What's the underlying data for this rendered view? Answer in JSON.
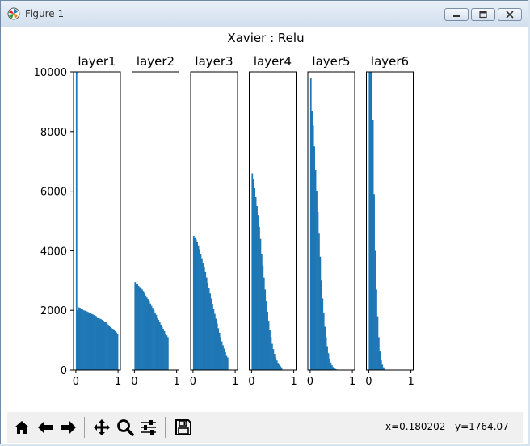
{
  "window": {
    "title": "Figure 1",
    "icon": "matplotlib-icon",
    "controls": [
      "minimize-icon",
      "maximize-icon",
      "close-icon"
    ]
  },
  "figure": {
    "suptitle": "Xavier : Relu"
  },
  "chart_data": [
    {
      "type": "bar",
      "title": "layer1",
      "xlim": [
        0,
        1
      ],
      "ylim": [
        0,
        10000
      ],
      "xticks": [
        "0",
        "1"
      ],
      "yticks": [
        "0",
        "2000",
        "4000",
        "6000",
        "8000",
        "10000"
      ],
      "values": [
        10000,
        2000,
        2100,
        2080,
        2060,
        2040,
        2000,
        1990,
        1980,
        1960,
        1940,
        1920,
        1900,
        1880,
        1860,
        1840,
        1820,
        1800,
        1760,
        1740,
        1720,
        1700,
        1680,
        1650,
        1620,
        1600,
        1560,
        1520,
        1480,
        1440,
        1400,
        1380,
        1360,
        1300,
        1260,
        1220
      ],
      "color": "#1f77b4"
    },
    {
      "type": "bar",
      "title": "layer2",
      "xlim": [
        0,
        1
      ],
      "ylim": [
        0,
        10000
      ],
      "xticks": [
        "0",
        "1"
      ],
      "values": [
        2950,
        2900,
        2880,
        2820,
        2780,
        2740,
        2700,
        2650,
        2580,
        2500,
        2430,
        2380,
        2300,
        2230,
        2150,
        2080,
        2000,
        1920,
        1850,
        1760,
        1680,
        1600,
        1520,
        1440,
        1380,
        1300,
        1220,
        1160,
        1100
      ],
      "color": "#1f77b4"
    },
    {
      "type": "bar",
      "title": "layer3",
      "xlim": [
        0,
        1
      ],
      "ylim": [
        0,
        10000
      ],
      "xticks": [
        "0",
        "1"
      ],
      "values": [
        4500,
        4450,
        4380,
        4300,
        4180,
        4050,
        3900,
        3750,
        3600,
        3450,
        3280,
        3100,
        2930,
        2750,
        2570,
        2400,
        2220,
        2050,
        1880,
        1720,
        1560,
        1400,
        1250,
        1100,
        960,
        830,
        720,
        600,
        500,
        420
      ],
      "color": "#1f77b4"
    },
    {
      "type": "bar",
      "title": "layer4",
      "xlim": [
        0,
        1
      ],
      "ylim": [
        0,
        10000
      ],
      "xticks": [
        "0",
        "1"
      ],
      "values": [
        6600,
        6400,
        6100,
        5800,
        5500,
        5200,
        4800,
        4400,
        3900,
        3500,
        3100,
        2700,
        2300,
        1950,
        1650,
        1350,
        1100,
        880,
        700,
        540,
        420,
        320,
        240,
        180,
        130,
        90
      ],
      "color": "#1f77b4"
    },
    {
      "type": "bar",
      "title": "layer5",
      "xlim": [
        0,
        1
      ],
      "ylim": [
        0,
        10000
      ],
      "xticks": [
        "0",
        "1"
      ],
      "values": [
        9800,
        8700,
        8200,
        7500,
        6700,
        6000,
        5300,
        4600,
        3800,
        3000,
        2400,
        1900,
        1450,
        1100,
        800,
        560,
        380,
        250,
        160,
        100,
        60,
        35,
        20,
        10
      ],
      "color": "#1f77b4"
    },
    {
      "type": "bar",
      "title": "layer6",
      "xlim": [
        0,
        1
      ],
      "ylim": [
        0,
        10000
      ],
      "xticks": [
        "0",
        "1"
      ],
      "values": [
        10000,
        10000,
        10000,
        8400,
        5900,
        4000,
        2700,
        1800,
        1100,
        620,
        340,
        180,
        90,
        40,
        15
      ],
      "color": "#1f77b4"
    }
  ],
  "toolbar": {
    "buttons": [
      {
        "name": "home-button",
        "icon": "home-icon"
      },
      {
        "name": "back-button",
        "icon": "arrow-left-icon"
      },
      {
        "name": "forward-button",
        "icon": "arrow-right-icon"
      },
      {
        "name": "pan-button",
        "icon": "move-icon"
      },
      {
        "name": "zoom-button",
        "icon": "magnifier-icon"
      },
      {
        "name": "configure-button",
        "icon": "sliders-icon"
      },
      {
        "name": "save-button",
        "icon": "floppy-disk-icon"
      }
    ],
    "x_readout": "x=0.180202",
    "y_readout": "y=1764.07"
  }
}
